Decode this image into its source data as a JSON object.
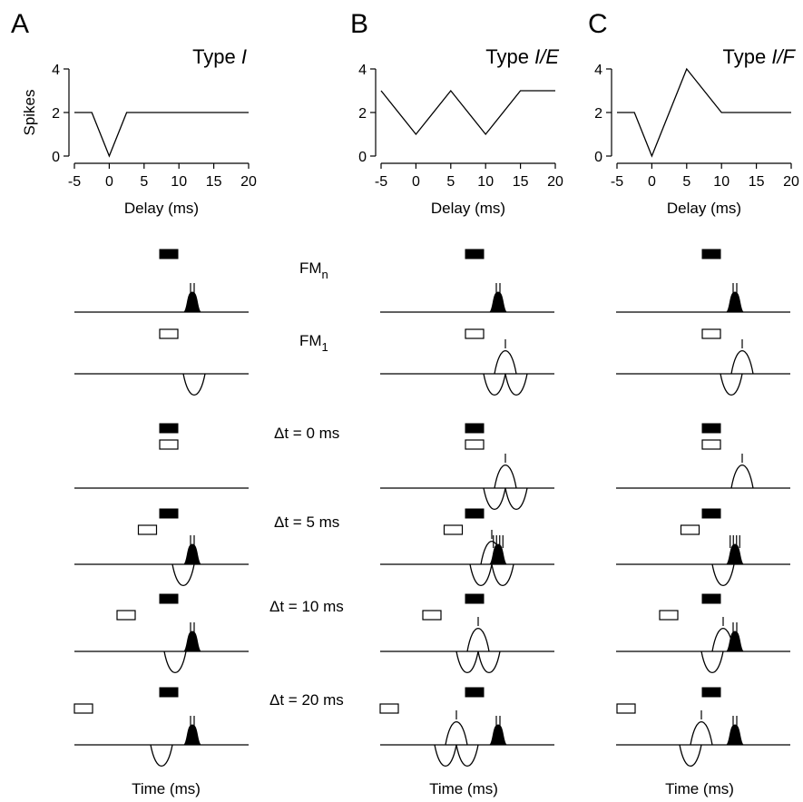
{
  "chart_data": [
    {
      "type": "line",
      "panel": "A",
      "title_prefix": "Type ",
      "title_italic": "I",
      "xlabel": "Delay (ms)",
      "ylabel": "Spikes",
      "xlim": [
        -5,
        20
      ],
      "ylim": [
        0,
        4
      ],
      "xticks": [
        -5,
        0,
        5,
        10,
        15,
        20
      ],
      "yticks": [
        0,
        2,
        4
      ],
      "x": [
        -5,
        -2.5,
        0,
        2.5,
        5,
        10,
        15,
        20
      ],
      "y": [
        2,
        2,
        0,
        2,
        2,
        2,
        2,
        2
      ]
    },
    {
      "type": "line",
      "panel": "B",
      "title_prefix": "Type ",
      "title_italic": "I/E",
      "xlabel": "Delay (ms)",
      "ylabel": "",
      "xlim": [
        -5,
        20
      ],
      "ylim": [
        0,
        4
      ],
      "xticks": [
        -5,
        0,
        5,
        10,
        15,
        20
      ],
      "yticks": [
        0,
        2,
        4
      ],
      "x": [
        -5,
        0,
        5,
        10,
        15,
        20
      ],
      "y": [
        3,
        1,
        3,
        1,
        3,
        3
      ]
    },
    {
      "type": "line",
      "panel": "C",
      "title_prefix": "Type ",
      "title_italic": "I/F",
      "xlabel": "Delay (ms)",
      "ylabel": "",
      "xlim": [
        -5,
        20
      ],
      "ylim": [
        0,
        4
      ],
      "xticks": [
        -5,
        0,
        5,
        10,
        15,
        20
      ],
      "yticks": [
        0,
        2,
        4
      ],
      "x": [
        -5,
        -2.5,
        0,
        5,
        10,
        15,
        20
      ],
      "y": [
        2,
        2,
        0,
        4,
        2,
        2,
        2
      ]
    }
  ],
  "row_labels": [
    {
      "main": "FM",
      "sub": "n"
    },
    {
      "main": "FM",
      "sub": "1"
    },
    {
      "main": "Δt = 0 ms",
      "sub": ""
    },
    {
      "main": "Δt = 5 ms",
      "sub": ""
    },
    {
      "main": "Δt = 10 ms",
      "sub": ""
    },
    {
      "main": "Δt = 20 ms",
      "sub": ""
    }
  ],
  "time_label": "Time (ms)",
  "rows": [
    {
      "delay_ms": null,
      "fm1": false
    },
    {
      "delay_ms": null,
      "fm1": true
    },
    {
      "delay_ms": 0,
      "fm1": true
    },
    {
      "delay_ms": 5,
      "fm1": true
    },
    {
      "delay_ms": 10,
      "fm1": true
    },
    {
      "delay_ms": 20,
      "fm1": true
    }
  ],
  "traces": {
    "A": [
      [
        {
          "k": "e",
          "t": 12,
          "n": 2
        }
      ],
      [
        {
          "k": "i",
          "t": 12,
          "d": "down"
        }
      ],
      [],
      [
        {
          "k": "i",
          "t": 8,
          "d": "down"
        },
        {
          "k": "e",
          "t": 12,
          "n": 2
        }
      ],
      [
        {
          "k": "i",
          "t": 5,
          "d": "down"
        },
        {
          "k": "e",
          "t": 12,
          "n": 2
        }
      ],
      [
        {
          "k": "i",
          "t": 0,
          "d": "down"
        },
        {
          "k": "e",
          "t": 12,
          "n": 2
        }
      ]
    ],
    "B": [
      [
        {
          "k": "e",
          "t": 12,
          "n": 2
        }
      ],
      [
        {
          "k": "i",
          "t": 10,
          "d": "down"
        },
        {
          "k": "i",
          "t": 14,
          "d": "up"
        },
        {
          "k": "i",
          "t": 18,
          "d": "down"
        }
      ],
      [
        {
          "k": "i",
          "t": 10,
          "d": "down"
        },
        {
          "k": "i",
          "t": 14,
          "d": "up"
        },
        {
          "k": "i",
          "t": 18,
          "d": "down"
        }
      ],
      [
        {
          "k": "i",
          "t": 5,
          "d": "down"
        },
        {
          "k": "i",
          "t": 9,
          "d": "up"
        },
        {
          "k": "i",
          "t": 13,
          "d": "down"
        },
        {
          "k": "e",
          "t": 12,
          "n": 4
        }
      ],
      [
        {
          "k": "i",
          "t": 0,
          "d": "down"
        },
        {
          "k": "i",
          "t": 4,
          "d": "up"
        },
        {
          "k": "i",
          "t": 8,
          "d": "down"
        }
      ],
      [
        {
          "k": "i",
          "t": -8,
          "d": "down"
        },
        {
          "k": "i",
          "t": -4,
          "d": "up"
        },
        {
          "k": "i",
          "t": 0,
          "d": "down"
        },
        {
          "k": "e",
          "t": 12,
          "n": 2
        }
      ]
    ],
    "C": [
      [
        {
          "k": "e",
          "t": 12,
          "n": 2
        }
      ],
      [
        {
          "k": "i",
          "t": 10,
          "d": "down"
        },
        {
          "k": "i",
          "t": 14,
          "d": "up"
        }
      ],
      [
        {
          "k": "i",
          "t": 14,
          "d": "up"
        }
      ],
      [
        {
          "k": "i",
          "t": 7,
          "d": "down"
        },
        {
          "k": "e",
          "t": 12,
          "n": 4
        }
      ],
      [
        {
          "k": "i",
          "t": 3,
          "d": "down"
        },
        {
          "k": "i",
          "t": 7,
          "d": "up"
        },
        {
          "k": "e",
          "t": 12,
          "n": 2
        }
      ],
      [
        {
          "k": "i",
          "t": -5,
          "d": "down"
        },
        {
          "k": "i",
          "t": -1,
          "d": "up"
        },
        {
          "k": "e",
          "t": 12,
          "n": 2
        }
      ]
    ]
  }
}
